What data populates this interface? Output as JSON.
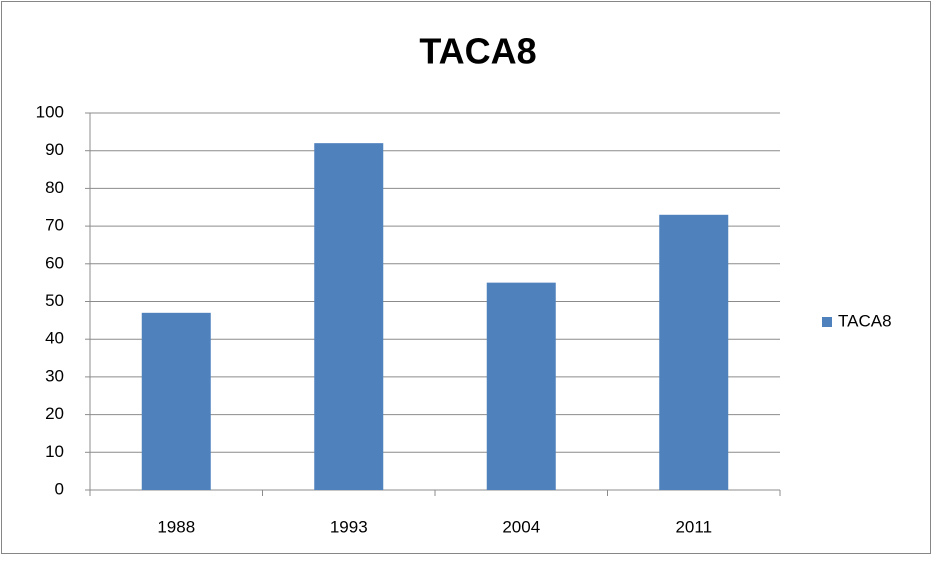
{
  "chart_data": {
    "type": "bar",
    "title": "TACA8",
    "categories": [
      "1988",
      "1993",
      "2004",
      "2011"
    ],
    "series": [
      {
        "name": "TACA8",
        "color": "#4f81bd",
        "values": [
          47,
          92,
          55,
          73
        ]
      }
    ],
    "ylim": [
      0,
      100
    ],
    "yticks": [
      0,
      10,
      20,
      30,
      40,
      50,
      60,
      70,
      80,
      90,
      100
    ],
    "grid": true,
    "legend": "right"
  }
}
